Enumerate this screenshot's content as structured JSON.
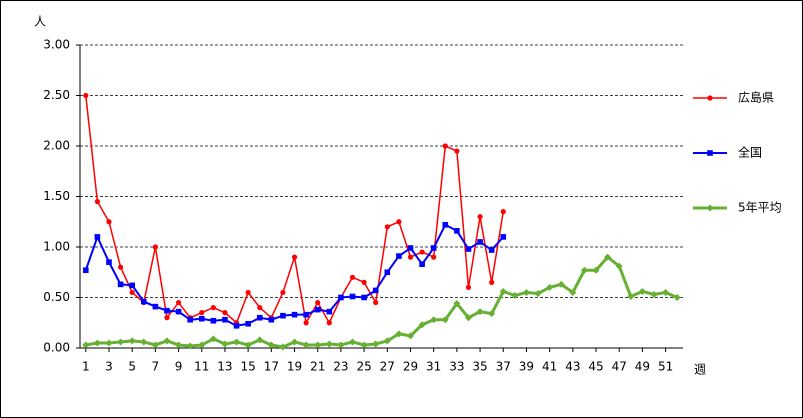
{
  "chart_data": {
    "type": "line",
    "y_label": "人",
    "x_label": "週",
    "x": [
      1,
      2,
      3,
      4,
      5,
      6,
      7,
      8,
      9,
      10,
      11,
      12,
      13,
      14,
      15,
      16,
      17,
      18,
      19,
      20,
      21,
      22,
      23,
      24,
      25,
      26,
      27,
      28,
      29,
      30,
      31,
      32,
      33,
      34,
      35,
      36,
      37,
      38,
      39,
      40,
      41,
      42,
      43,
      44,
      45,
      46,
      47,
      48,
      49,
      50,
      51,
      52
    ],
    "xlim": [
      0.5,
      52.5
    ],
    "xticks": [
      1,
      3,
      5,
      7,
      9,
      11,
      13,
      15,
      17,
      19,
      21,
      23,
      25,
      27,
      29,
      31,
      33,
      35,
      37,
      39,
      41,
      43,
      45,
      47,
      49,
      51
    ],
    "ylim": [
      0,
      3
    ],
    "yticks": [
      {
        "value": 0,
        "label": "0.00"
      },
      {
        "value": 0.5,
        "label": "0.50"
      },
      {
        "value": 1,
        "label": "1.00"
      },
      {
        "value": 1.5,
        "label": "1.50"
      },
      {
        "value": 2,
        "label": "2.00"
      },
      {
        "value": 2.5,
        "label": "2.50"
      },
      {
        "value": 3,
        "label": "3.00"
      }
    ],
    "grid": true,
    "legend": "right",
    "series": [
      {
        "name": "広島県",
        "color": "#ff0000",
        "marker": "circle",
        "values": [
          2.5,
          1.45,
          1.25,
          0.8,
          0.55,
          0.45,
          1.0,
          0.3,
          0.45,
          0.3,
          0.35,
          0.4,
          0.35,
          0.25,
          0.55,
          0.4,
          0.3,
          0.55,
          0.9,
          0.25,
          0.45,
          0.25,
          0.5,
          0.7,
          0.65,
          0.45,
          1.2,
          1.25,
          0.9,
          0.95,
          0.9,
          2.0,
          1.95,
          0.6,
          1.3,
          0.65,
          1.35,
          null,
          null,
          null,
          null,
          null,
          null,
          null,
          null,
          null,
          null,
          null,
          null,
          null,
          null,
          null
        ]
      },
      {
        "name": "全国",
        "color": "#0000ff",
        "marker": "square",
        "values": [
          0.77,
          1.1,
          0.85,
          0.63,
          0.62,
          0.46,
          0.41,
          0.37,
          0.36,
          0.28,
          0.29,
          0.27,
          0.28,
          0.22,
          0.24,
          0.3,
          0.28,
          0.32,
          0.33,
          0.33,
          0.38,
          0.36,
          0.5,
          0.51,
          0.5,
          0.57,
          0.75,
          0.91,
          0.99,
          0.83,
          0.99,
          1.22,
          1.16,
          0.98,
          1.05,
          0.97,
          1.1,
          null,
          null,
          null,
          null,
          null,
          null,
          null,
          null,
          null,
          null,
          null,
          null,
          null,
          null,
          null
        ]
      },
      {
        "name": "5年平均",
        "color": "#66b032",
        "marker": "diamond",
        "values": [
          0.03,
          0.05,
          0.05,
          0.06,
          0.07,
          0.06,
          0.03,
          0.07,
          0.03,
          0.02,
          0.03,
          0.09,
          0.04,
          0.06,
          0.03,
          0.08,
          0.03,
          0.01,
          0.06,
          0.03,
          0.03,
          0.04,
          0.03,
          0.06,
          0.03,
          0.04,
          0.07,
          0.14,
          0.12,
          0.23,
          0.28,
          0.28,
          0.44,
          0.3,
          0.36,
          0.34,
          0.56,
          0.52,
          0.55,
          0.54,
          0.6,
          0.63,
          0.55,
          0.77,
          0.77,
          0.9,
          0.81,
          0.51,
          0.56,
          0.53,
          0.55,
          0.5
        ]
      }
    ]
  }
}
